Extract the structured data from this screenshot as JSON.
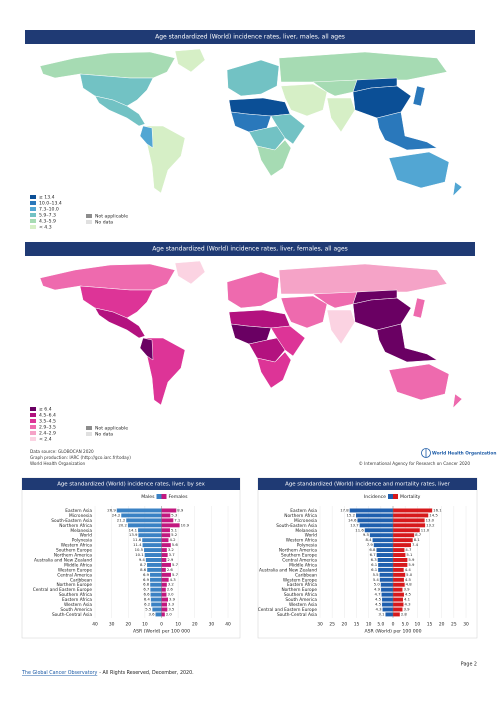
{
  "maps": [
    {
      "title": "Age standardized (World) incidence rates, liver, males, all ages",
      "legend": [
        {
          "label": "≥ 13.4",
          "color": "#0b4f96"
        },
        {
          "label": "10.0–13.4",
          "color": "#2a78bb"
        },
        {
          "label": "7.3–10.0",
          "color": "#52a6d3"
        },
        {
          "label": "5.9–7.3",
          "color": "#72c2c4"
        },
        {
          "label": "4.3–5.9",
          "color": "#a6dbb3"
        },
        {
          "label": "< 4.3",
          "color": "#d6efc6"
        }
      ],
      "other": [
        {
          "label": "Not applicable",
          "color": "#8c8c8c"
        },
        {
          "label": "No data",
          "color": "#e0e0e0"
        }
      ]
    },
    {
      "title": "Age standardized (World) incidence rates, liver, females, all ages",
      "legend": [
        {
          "label": "≥ 6.4",
          "color": "#6a0063"
        },
        {
          "label": "4.5–6.4",
          "color": "#b3127f"
        },
        {
          "label": "3.5–4.5",
          "color": "#dd3497"
        },
        {
          "label": "2.9–3.5",
          "color": "#ee6aae"
        },
        {
          "label": "2.4–2.9",
          "color": "#f5a3c7"
        },
        {
          "label": "< 2.4",
          "color": "#fbd3e2"
        }
      ],
      "other": [
        {
          "label": "Not applicable",
          "color": "#8c8c8c"
        },
        {
          "label": "No data",
          "color": "#e0e0e0"
        }
      ]
    }
  ],
  "credits": {
    "source": "Data source: GLOBOCAN 2020",
    "production": "Graph production: IARC (http://gco.iarc.fr/today)",
    "org": "World Health Organization",
    "who_logo": "World Health Organization",
    "copyright": "© International Agency for Research on Cancer 2020"
  },
  "footer": {
    "link": "The Global Cancer Observatory",
    "text": "- All Rights Reserved, December, 2020.",
    "page": "Page 2"
  },
  "chart_data": [
    {
      "type": "bar",
      "orientation": "horizontal",
      "title": "Age standardized (World) incidence rates, liver, by sex",
      "x_label": "ASR (World) per 100 000",
      "categories": [
        "Eastern Asia",
        "Micronesia",
        "South-Eastern Asia",
        "Northern Africa",
        "Melanesia",
        "World",
        "Polynesia",
        "Western Africa",
        "Southern Europe",
        "Northern America",
        "Australia and New Zealand",
        "Middle Africa",
        "Western Europe",
        "Central America",
        "Caribbean",
        "Northern Europe",
        "Central and Eastern Europe",
        "Southern Africa",
        "Eastern Africa",
        "Western Asia",
        "South America",
        "South-Central Asia"
      ],
      "series": [
        {
          "name": "Males",
          "color": "#3b82c4",
          "values": [
            26.9,
            24.2,
            21.2,
            20.2,
            14.1,
            13.9,
            11.6,
            11.4,
            10.5,
            10.1,
            9.4,
            8.7,
            8.6,
            6.9,
            6.9,
            6.8,
            6.7,
            6.6,
            6.4,
            6.2,
            5.5,
            3.6
          ],
          "value_labels": [
            "26.9",
            "24.2",
            "21.2",
            "20.2",
            "14.1",
            "13.9",
            "11.6",
            "11.4",
            "10.5",
            "10.1",
            "9.4",
            "8.7",
            "8.6",
            "6.9",
            "6.9",
            "6.8",
            "6.7",
            "6.6",
            "6.4",
            "6.2",
            "5.5",
            "3.6"
          ]
        },
        {
          "name": "Females",
          "color": "#c2187f",
          "values": [
            8.9,
            5.3,
            7.1,
            10.9,
            5.1,
            5.2,
            4.2,
            5.6,
            3.2,
            3.7,
            2.9,
            5.7,
            2.6,
            5.7,
            4.3,
            3.2,
            2.6,
            3.0,
            3.9,
            3.3,
            3.5,
            2.0
          ],
          "value_labels": [
            "8.9",
            "5.3",
            "7.1",
            "10.9",
            "5.1",
            "5.2",
            "4.2",
            "5.6",
            "3.2",
            "3.7",
            "2.9",
            "5.7",
            "2.6",
            "5.7",
            "4.3",
            "3.2",
            "2.6",
            "3.0",
            "3.9",
            "3.3",
            "3.5",
            "2.0"
          ]
        }
      ],
      "xlim": [
        -40,
        40
      ],
      "xticks": [
        {
          "value": -40,
          "label": "40"
        },
        {
          "value": -30,
          "label": "30"
        },
        {
          "value": -20,
          "label": "20"
        },
        {
          "value": -10,
          "label": "10"
        },
        0,
        10,
        20,
        30,
        40
      ],
      "grid": true
    },
    {
      "type": "bar",
      "orientation": "horizontal",
      "title": "Age standardized (World) incidence and mortality rates, liver",
      "x_label": "ASR (World) per 100 000",
      "categories": [
        "Eastern Asia",
        "Northern Africa",
        "Micronesia",
        "South-Eastern Asia",
        "Melanesia",
        "World",
        "Western Africa",
        "Polynesia",
        "Northern America",
        "Southern Europe",
        "Central America",
        "Middle Africa",
        "Australia and New Zealand",
        "Caribbean",
        "Western Europe",
        "Eastern Africa",
        "Northern Europe",
        "Southern Africa",
        "South America",
        "Western Asia",
        "Central and Eastern Europe",
        "South-Central Asia"
      ],
      "series": [
        {
          "name": "Incidence",
          "color": "#1f5fae",
          "values": [
            17.8,
            15.2,
            14.6,
            13.7,
            11.6,
            9.5,
            8.4,
            7.9,
            6.8,
            6.7,
            6.3,
            6.1,
            6.1,
            5.5,
            5.4,
            5.0,
            4.9,
            4.7,
            4.5,
            4.5,
            4.3,
            3.1
          ],
          "value_labels": [
            "17.8",
            "15.2",
            "14.6",
            "13.7",
            "11.6",
            "9.5",
            "8.4",
            "7.9",
            "6.8",
            "6.7",
            "6.3",
            "6.1",
            "6.1",
            "5.5",
            "5.4",
            "5.0",
            "4.9",
            "4.7",
            "4.5",
            "4.5",
            "4.3",
            "3.1"
          ]
        },
        {
          "name": "Mortality",
          "color": "#d7191c",
          "values": [
            16.1,
            14.5,
            13.0,
            13.2,
            11.0,
            8.7,
            8.1,
            7.4,
            4.7,
            5.1,
            5.9,
            5.9,
            4.4,
            5.0,
            4.5,
            4.8,
            3.9,
            4.5,
            4.1,
            4.3,
            3.9,
            2.8
          ],
          "value_labels": [
            "16.1",
            "14.5",
            "13.0",
            "13.2",
            "11.0",
            "8.7",
            "8.1",
            "7.4",
            "4.7",
            "5.1",
            "5.9",
            "5.9",
            "4.4",
            "5.0",
            "4.5",
            "4.8",
            "3.9",
            "4.5",
            "4.1",
            "4.3",
            "3.9",
            "2.8"
          ]
        }
      ],
      "xlim": [
        -30,
        30
      ],
      "xticks": [
        {
          "value": -30,
          "label": "30"
        },
        {
          "value": -25,
          "label": "25"
        },
        {
          "value": -20,
          "label": "20"
        },
        {
          "value": -15,
          "label": "15"
        },
        {
          "value": -10,
          "label": "10"
        },
        {
          "value": -5,
          "label": "5.0"
        },
        0,
        {
          "value": 5,
          "label": "5.0"
        },
        10,
        15,
        20,
        25,
        30
      ],
      "grid": true
    }
  ]
}
